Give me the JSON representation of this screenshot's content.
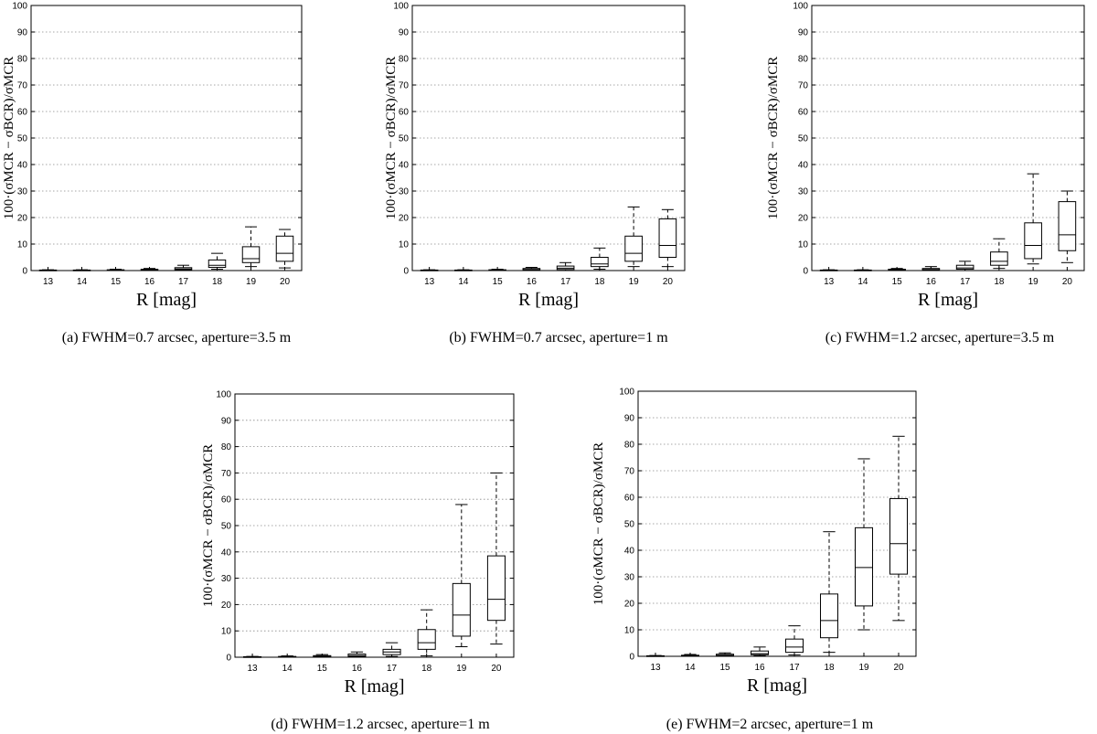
{
  "figure_captions": [
    "(a) FWHM=0.7 arcsec, aperture=3.5 m",
    "(b) FWHM=0.7 arcsec, aperture=1 m",
    "(c) FWHM=1.2 arcsec, aperture=3.5 m",
    "(d) FWHM=1.2 arcsec, aperture=1 m",
    "(e) FWHM=2 arcsec, aperture=1 m"
  ],
  "chart_data": [
    {
      "type": "box",
      "caption": "(a) FWHM=0.7 arcsec, aperture=3.5 m",
      "xlabel": "R [mag]",
      "ylabel": "100·(σMCR − σBCR)/σMCR",
      "categories": [
        "13",
        "14",
        "15",
        "16",
        "17",
        "18",
        "19",
        "20"
      ],
      "yticks": [
        "0",
        "10",
        "20",
        "30",
        "40",
        "50",
        "60",
        "70",
        "80",
        "90",
        "100"
      ],
      "ylim": [
        0,
        100
      ],
      "grid": true,
      "boxes": [
        {
          "min": 0,
          "q1": 0,
          "median": 0,
          "q3": 0.2,
          "max": 0.3
        },
        {
          "min": 0,
          "q1": 0,
          "median": 0,
          "q3": 0.2,
          "max": 0.3
        },
        {
          "min": 0,
          "q1": 0,
          "median": 0.1,
          "q3": 0.3,
          "max": 0.5
        },
        {
          "min": 0,
          "q1": 0.1,
          "median": 0.2,
          "q3": 0.5,
          "max": 0.8
        },
        {
          "min": 0,
          "q1": 0.3,
          "median": 0.6,
          "q3": 1.1,
          "max": 2
        },
        {
          "min": 0.5,
          "q1": 1.2,
          "median": 2,
          "q3": 4,
          "max": 6.5
        },
        {
          "min": 1.5,
          "q1": 3,
          "median": 4.5,
          "q3": 9,
          "max": 16.5
        },
        {
          "min": 1,
          "q1": 3.5,
          "median": 6.5,
          "q3": 13,
          "max": 15.5
        }
      ]
    },
    {
      "type": "box",
      "caption": "(b) FWHM=0.7 arcsec, aperture=1 m",
      "xlabel": "R [mag]",
      "ylabel": "100·(σMCR − σBCR)/σMCR",
      "categories": [
        "13",
        "14",
        "15",
        "16",
        "17",
        "18",
        "19",
        "20"
      ],
      "yticks": [
        "0",
        "10",
        "20",
        "30",
        "40",
        "50",
        "60",
        "70",
        "80",
        "90",
        "100"
      ],
      "ylim": [
        0,
        100
      ],
      "grid": true,
      "boxes": [
        {
          "min": 0,
          "q1": 0,
          "median": 0,
          "q3": 0.2,
          "max": 0.3
        },
        {
          "min": 0,
          "q1": 0,
          "median": 0,
          "q3": 0.2,
          "max": 0.3
        },
        {
          "min": 0,
          "q1": 0,
          "median": 0.1,
          "q3": 0.3,
          "max": 0.5
        },
        {
          "min": 0,
          "q1": 0.2,
          "median": 0.4,
          "q3": 0.8,
          "max": 1.2
        },
        {
          "min": 0,
          "q1": 0.4,
          "median": 0.9,
          "q3": 1.7,
          "max": 3
        },
        {
          "min": 0.5,
          "q1": 1.5,
          "median": 2.5,
          "q3": 5,
          "max": 8.5
        },
        {
          "min": 1.5,
          "q1": 3.5,
          "median": 6.5,
          "q3": 13,
          "max": 24
        },
        {
          "min": 1.5,
          "q1": 5,
          "median": 9.5,
          "q3": 19.5,
          "max": 23
        }
      ]
    },
    {
      "type": "box",
      "caption": "(c) FWHM=1.2 arcsec, aperture=3.5 m",
      "xlabel": "R [mag]",
      "ylabel": "100·(σMCR − σBCR)/σMCR",
      "categories": [
        "13",
        "14",
        "15",
        "16",
        "17",
        "18",
        "19",
        "20"
      ],
      "yticks": [
        "0",
        "10",
        "20",
        "30",
        "40",
        "50",
        "60",
        "70",
        "80",
        "90",
        "100"
      ],
      "ylim": [
        0,
        100
      ],
      "grid": true,
      "boxes": [
        {
          "min": 0,
          "q1": 0,
          "median": 0,
          "q3": 0.2,
          "max": 0.3
        },
        {
          "min": 0,
          "q1": 0,
          "median": 0,
          "q3": 0.2,
          "max": 0.3
        },
        {
          "min": 0,
          "q1": 0.1,
          "median": 0.2,
          "q3": 0.5,
          "max": 0.8
        },
        {
          "min": 0,
          "q1": 0.2,
          "median": 0.4,
          "q3": 0.8,
          "max": 1.5
        },
        {
          "min": 0,
          "q1": 0.5,
          "median": 1,
          "q3": 2,
          "max": 3.5
        },
        {
          "min": 0.8,
          "q1": 2,
          "median": 3.5,
          "q3": 7,
          "max": 12
        },
        {
          "min": 2.5,
          "q1": 4.5,
          "median": 9.5,
          "q3": 18,
          "max": 36.5
        },
        {
          "min": 3,
          "q1": 7.5,
          "median": 13.5,
          "q3": 26,
          "max": 30
        }
      ]
    },
    {
      "type": "box",
      "caption": "(d) FWHM=1.2 arcsec, aperture=1 m",
      "xlabel": "R [mag]",
      "ylabel": "100·(σMCR − σBCR)/σMCR",
      "categories": [
        "13",
        "14",
        "15",
        "16",
        "17",
        "18",
        "19",
        "20"
      ],
      "yticks": [
        "0",
        "10",
        "20",
        "30",
        "40",
        "50",
        "60",
        "70",
        "80",
        "90",
        "100"
      ],
      "ylim": [
        0,
        100
      ],
      "grid": true,
      "boxes": [
        {
          "min": 0,
          "q1": 0,
          "median": 0,
          "q3": 0.2,
          "max": 0.3
        },
        {
          "min": 0,
          "q1": 0,
          "median": 0.1,
          "q3": 0.3,
          "max": 0.5
        },
        {
          "min": 0,
          "q1": 0.1,
          "median": 0.3,
          "q3": 0.6,
          "max": 1
        },
        {
          "min": 0,
          "q1": 0.3,
          "median": 0.6,
          "q3": 1.2,
          "max": 2
        },
        {
          "min": 0.3,
          "q1": 1,
          "median": 2,
          "q3": 3,
          "max": 5.5
        },
        {
          "min": 0.5,
          "q1": 3,
          "median": 5.5,
          "q3": 10.5,
          "max": 18
        },
        {
          "min": 4,
          "q1": 8,
          "median": 16,
          "q3": 28,
          "max": 58
        },
        {
          "min": 5,
          "q1": 14,
          "median": 22,
          "q3": 38.5,
          "max": 70
        }
      ]
    },
    {
      "type": "box",
      "caption": "(e) FWHM=2 arcsec, aperture=1 m",
      "xlabel": "R [mag]",
      "ylabel": "100·(σMCR − σBCR)/σMCR",
      "categories": [
        "13",
        "14",
        "15",
        "16",
        "17",
        "18",
        "19",
        "20"
      ],
      "yticks": [
        "0",
        "10",
        "20",
        "30",
        "40",
        "50",
        "60",
        "70",
        "80",
        "90",
        "100"
      ],
      "ylim": [
        0,
        100
      ],
      "grid": true,
      "boxes": [
        {
          "min": 0,
          "q1": 0,
          "median": 0,
          "q3": 0.2,
          "max": 0.3
        },
        {
          "min": 0,
          "q1": 0.1,
          "median": 0.2,
          "q3": 0.4,
          "max": 0.7
        },
        {
          "min": 0,
          "q1": 0.2,
          "median": 0.4,
          "q3": 0.8,
          "max": 1.3
        },
        {
          "min": 0.2,
          "q1": 0.6,
          "median": 1,
          "q3": 2,
          "max": 3.5
        },
        {
          "min": 0.5,
          "q1": 1.5,
          "median": 3.5,
          "q3": 6.5,
          "max": 11.5
        },
        {
          "min": 1.5,
          "q1": 7,
          "median": 13.5,
          "q3": 23.5,
          "max": 47
        },
        {
          "min": 10,
          "q1": 19,
          "median": 33.5,
          "q3": 48.5,
          "max": 74.5
        },
        {
          "min": 13.5,
          "q1": 31,
          "median": 42.5,
          "q3": 59.5,
          "max": 83
        }
      ]
    }
  ]
}
